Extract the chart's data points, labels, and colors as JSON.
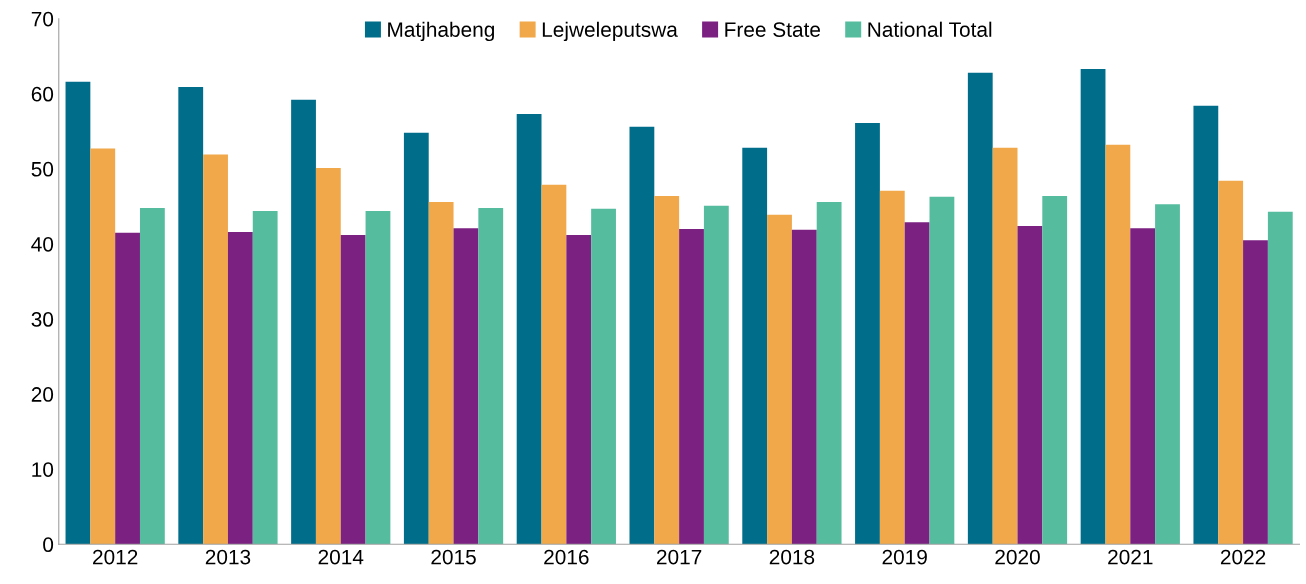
{
  "chart_data": {
    "type": "bar",
    "categories": [
      "2012",
      "2013",
      "2014",
      "2015",
      "2016",
      "2017",
      "2018",
      "2019",
      "2020",
      "2021",
      "2022"
    ],
    "series": [
      {
        "name": "Matjhabeng",
        "color": "#006e8a",
        "values": [
          61.6,
          60.9,
          59.2,
          54.8,
          57.3,
          55.6,
          52.8,
          56.1,
          62.8,
          63.3,
          58.4
        ]
      },
      {
        "name": "Lejweleputswa",
        "color": "#f0a84a",
        "values": [
          52.7,
          51.9,
          50.1,
          45.6,
          47.9,
          46.4,
          43.9,
          47.1,
          52.8,
          53.2,
          48.4
        ]
      },
      {
        "name": "Free State",
        "color": "#7b2181",
        "values": [
          41.5,
          41.6,
          41.2,
          42.1,
          41.2,
          42.0,
          41.9,
          42.9,
          42.4,
          42.1,
          40.5
        ]
      },
      {
        "name": "National Total",
        "color": "#55bc9e",
        "values": [
          44.8,
          44.4,
          44.4,
          44.8,
          44.7,
          45.1,
          45.6,
          46.3,
          46.4,
          45.3,
          44.3
        ]
      }
    ],
    "ylim": [
      0,
      70
    ],
    "yticks": [
      0,
      10,
      20,
      30,
      40,
      50,
      60,
      70
    ],
    "grid": false,
    "legend": "top"
  }
}
